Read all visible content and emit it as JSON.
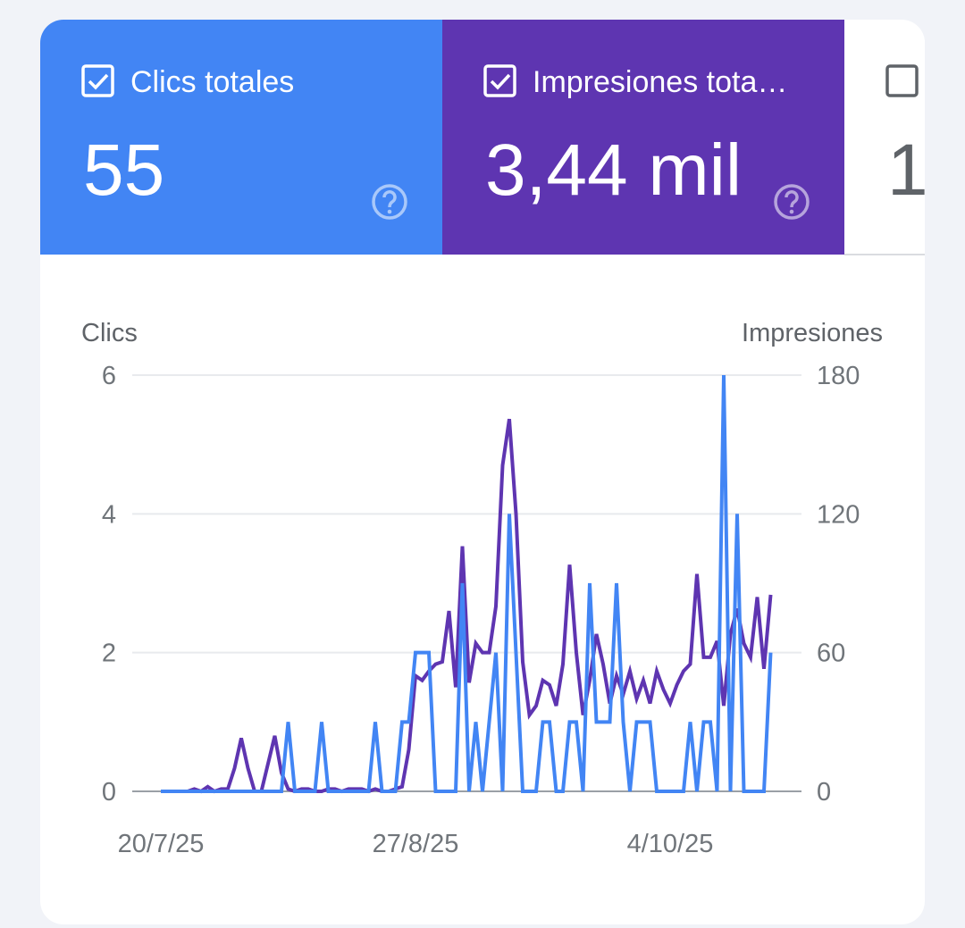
{
  "tiles": [
    {
      "label": "Clics totales",
      "value": "55",
      "checked": true,
      "color": "#4285f4"
    },
    {
      "label": "Impresiones tota…",
      "value": "3,44 mil",
      "checked": true,
      "color": "#5e35b1"
    },
    {
      "value": "1",
      "checked": false,
      "color": "#ffffff"
    }
  ],
  "chart_data": {
    "type": "line",
    "categories": [
      "20/7/25",
      null,
      null,
      null,
      null,
      null,
      null,
      null,
      null,
      null,
      null,
      null,
      null,
      null,
      null,
      null,
      null,
      null,
      null,
      null,
      null,
      null,
      null,
      null,
      null,
      null,
      null,
      null,
      null,
      null,
      null,
      null,
      null,
      null,
      null,
      null,
      null,
      null,
      "27/8/25",
      null,
      null,
      null,
      null,
      null,
      null,
      null,
      null,
      null,
      null,
      null,
      null,
      null,
      null,
      null,
      null,
      null,
      null,
      null,
      null,
      null,
      null,
      null,
      null,
      null,
      null,
      null,
      null,
      null,
      null,
      null,
      null,
      null,
      null,
      null,
      null,
      null,
      "4/10/25",
      null,
      null,
      null,
      null,
      null,
      null,
      null,
      null,
      null,
      null,
      null,
      null,
      null,
      null,
      null
    ],
    "series": [
      {
        "name": "Clics",
        "color": "#4285f4",
        "axis": "y",
        "values": [
          0,
          0,
          0,
          0,
          0,
          0,
          0,
          0,
          0,
          0,
          0,
          0,
          0,
          0,
          0,
          0,
          0,
          0,
          0,
          1,
          0,
          0,
          0,
          0,
          1,
          0,
          0,
          0,
          0,
          0,
          0,
          0,
          1,
          0,
          0,
          0,
          1,
          1,
          2,
          2,
          2,
          0,
          0,
          0,
          0,
          3,
          0,
          1,
          0,
          1,
          2,
          0,
          4,
          2,
          0,
          0,
          0,
          1,
          1,
          0,
          0,
          1,
          1,
          0,
          3,
          1,
          1,
          1,
          3,
          1,
          0,
          1,
          1,
          1,
          0,
          0,
          0,
          0,
          0,
          1,
          0,
          1,
          1,
          0,
          6,
          0,
          4,
          0,
          0,
          0,
          0,
          2
        ]
      },
      {
        "name": "Impresiones",
        "color": "#5e35b1",
        "axis": "y2",
        "values": [
          0,
          0,
          0,
          0,
          0,
          1,
          0,
          2,
          0,
          1,
          1,
          10,
          23,
          10,
          0,
          0,
          12,
          24,
          8,
          1,
          0,
          1,
          1,
          0,
          0,
          1,
          1,
          0,
          1,
          1,
          1,
          0,
          1,
          0,
          0,
          1,
          2,
          18,
          50,
          48,
          52,
          55,
          56,
          78,
          45,
          106,
          47,
          64,
          60,
          60,
          80,
          141,
          161,
          120,
          56,
          33,
          37,
          48,
          46,
          37,
          55,
          98,
          60,
          33,
          48,
          68,
          55,
          38,
          50,
          42,
          52,
          40,
          48,
          38,
          52,
          44,
          38,
          46,
          52,
          55,
          94,
          58,
          58,
          65,
          37,
          68,
          79,
          64,
          58,
          84,
          53,
          85
        ]
      }
    ],
    "ylim": [
      0,
      6
    ],
    "yticks": [
      0,
      2,
      4,
      6
    ],
    "y2lim": [
      0,
      180
    ],
    "y2ticks": [
      0,
      60,
      120,
      180
    ],
    "grid": true
  }
}
